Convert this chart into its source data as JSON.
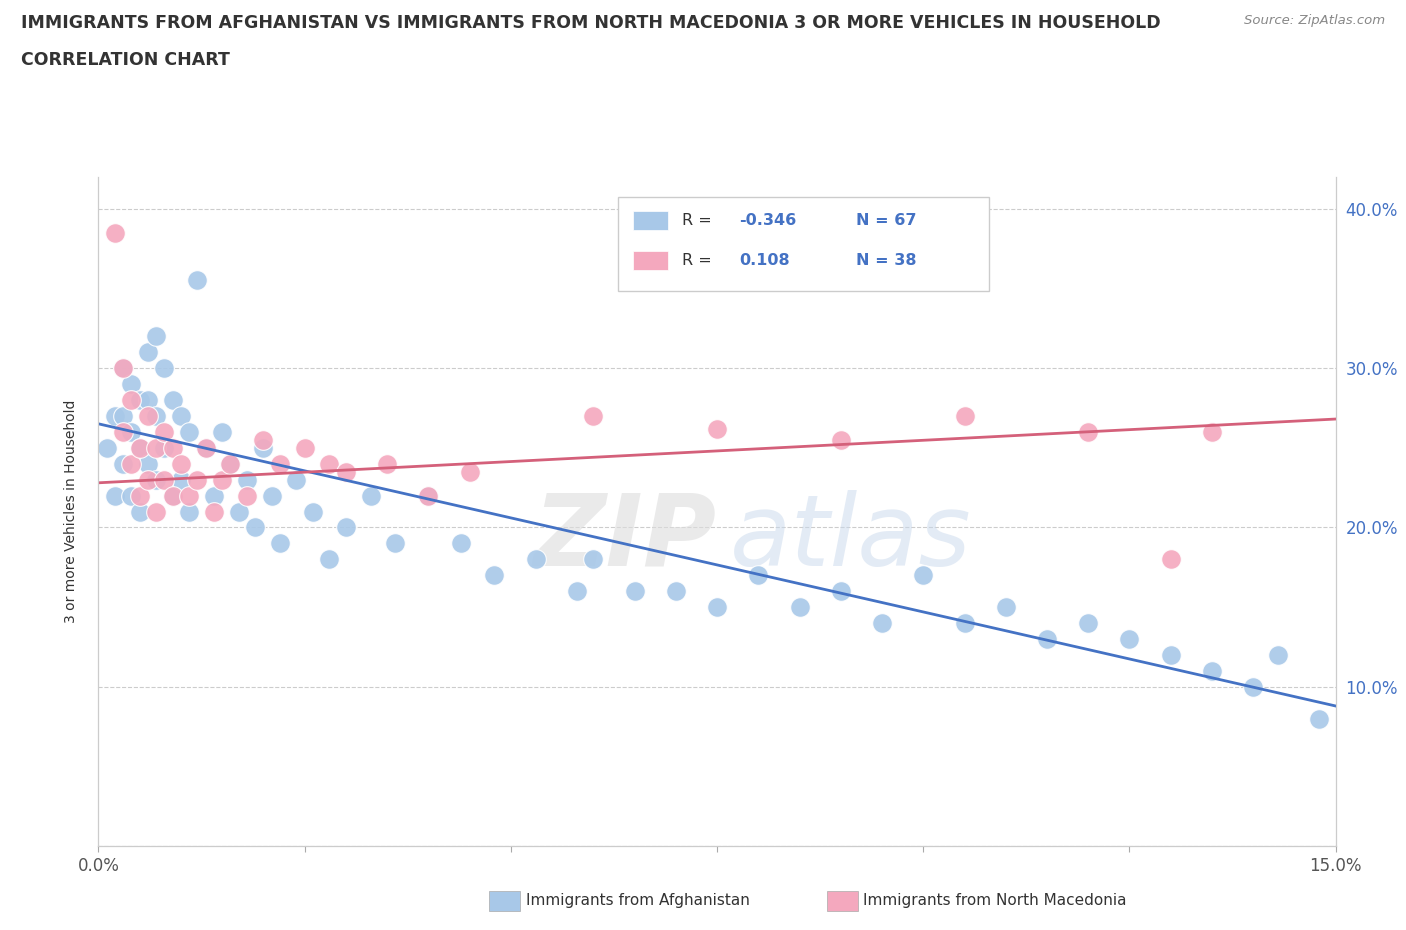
{
  "title_line1": "IMMIGRANTS FROM AFGHANISTAN VS IMMIGRANTS FROM NORTH MACEDONIA 3 OR MORE VEHICLES IN HOUSEHOLD",
  "title_line2": "CORRELATION CHART",
  "source_text": "Source: ZipAtlas.com",
  "ylabel": "3 or more Vehicles in Household",
  "xlim": [
    0.0,
    0.15
  ],
  "ylim": [
    0.0,
    0.42
  ],
  "afghanistan_color": "#a8c8e8",
  "macedonia_color": "#f4a8be",
  "afghanistan_line_color": "#4472c4",
  "macedonia_line_color": "#d4607a",
  "tick_color": "#4472c4",
  "afghanistan_R": -0.346,
  "afghanistan_N": 67,
  "macedonia_R": 0.108,
  "macedonia_N": 38,
  "background_color": "#ffffff",
  "afghanistan_x": [
    0.001,
    0.002,
    0.002,
    0.003,
    0.003,
    0.003,
    0.004,
    0.004,
    0.004,
    0.005,
    0.005,
    0.005,
    0.006,
    0.006,
    0.006,
    0.007,
    0.007,
    0.007,
    0.008,
    0.008,
    0.009,
    0.009,
    0.01,
    0.01,
    0.011,
    0.011,
    0.012,
    0.013,
    0.014,
    0.015,
    0.016,
    0.017,
    0.018,
    0.019,
    0.02,
    0.021,
    0.022,
    0.024,
    0.026,
    0.028,
    0.03,
    0.033,
    0.036,
    0.04,
    0.044,
    0.048,
    0.053,
    0.058,
    0.06,
    0.065,
    0.07,
    0.075,
    0.08,
    0.085,
    0.09,
    0.095,
    0.1,
    0.105,
    0.11,
    0.115,
    0.12,
    0.125,
    0.13,
    0.135,
    0.14,
    0.143,
    0.148
  ],
  "afghanistan_y": [
    0.25,
    0.22,
    0.27,
    0.3,
    0.27,
    0.24,
    0.29,
    0.26,
    0.22,
    0.28,
    0.25,
    0.21,
    0.31,
    0.28,
    0.24,
    0.32,
    0.27,
    0.23,
    0.3,
    0.25,
    0.28,
    0.22,
    0.27,
    0.23,
    0.26,
    0.21,
    0.355,
    0.25,
    0.22,
    0.26,
    0.24,
    0.21,
    0.23,
    0.2,
    0.25,
    0.22,
    0.19,
    0.23,
    0.21,
    0.18,
    0.2,
    0.22,
    0.19,
    0.22,
    0.19,
    0.17,
    0.18,
    0.16,
    0.18,
    0.16,
    0.16,
    0.15,
    0.17,
    0.15,
    0.16,
    0.14,
    0.17,
    0.14,
    0.15,
    0.13,
    0.14,
    0.13,
    0.12,
    0.11,
    0.1,
    0.12,
    0.08
  ],
  "macedonia_x": [
    0.002,
    0.003,
    0.003,
    0.004,
    0.004,
    0.005,
    0.005,
    0.006,
    0.006,
    0.007,
    0.007,
    0.008,
    0.008,
    0.009,
    0.009,
    0.01,
    0.011,
    0.012,
    0.013,
    0.014,
    0.015,
    0.016,
    0.018,
    0.02,
    0.022,
    0.025,
    0.028,
    0.03,
    0.035,
    0.04,
    0.045,
    0.06,
    0.075,
    0.09,
    0.105,
    0.12,
    0.13,
    0.135
  ],
  "macedonia_y": [
    0.385,
    0.3,
    0.26,
    0.28,
    0.24,
    0.25,
    0.22,
    0.27,
    0.23,
    0.25,
    0.21,
    0.26,
    0.23,
    0.22,
    0.25,
    0.24,
    0.22,
    0.23,
    0.25,
    0.21,
    0.23,
    0.24,
    0.22,
    0.255,
    0.24,
    0.25,
    0.24,
    0.235,
    0.24,
    0.22,
    0.235,
    0.27,
    0.262,
    0.255,
    0.27,
    0.26,
    0.18,
    0.26
  ],
  "af_trend_x": [
    0.0,
    0.15
  ],
  "af_trend_y": [
    0.265,
    0.088
  ],
  "mk_trend_x": [
    0.0,
    0.15
  ],
  "mk_trend_y": [
    0.228,
    0.268
  ]
}
